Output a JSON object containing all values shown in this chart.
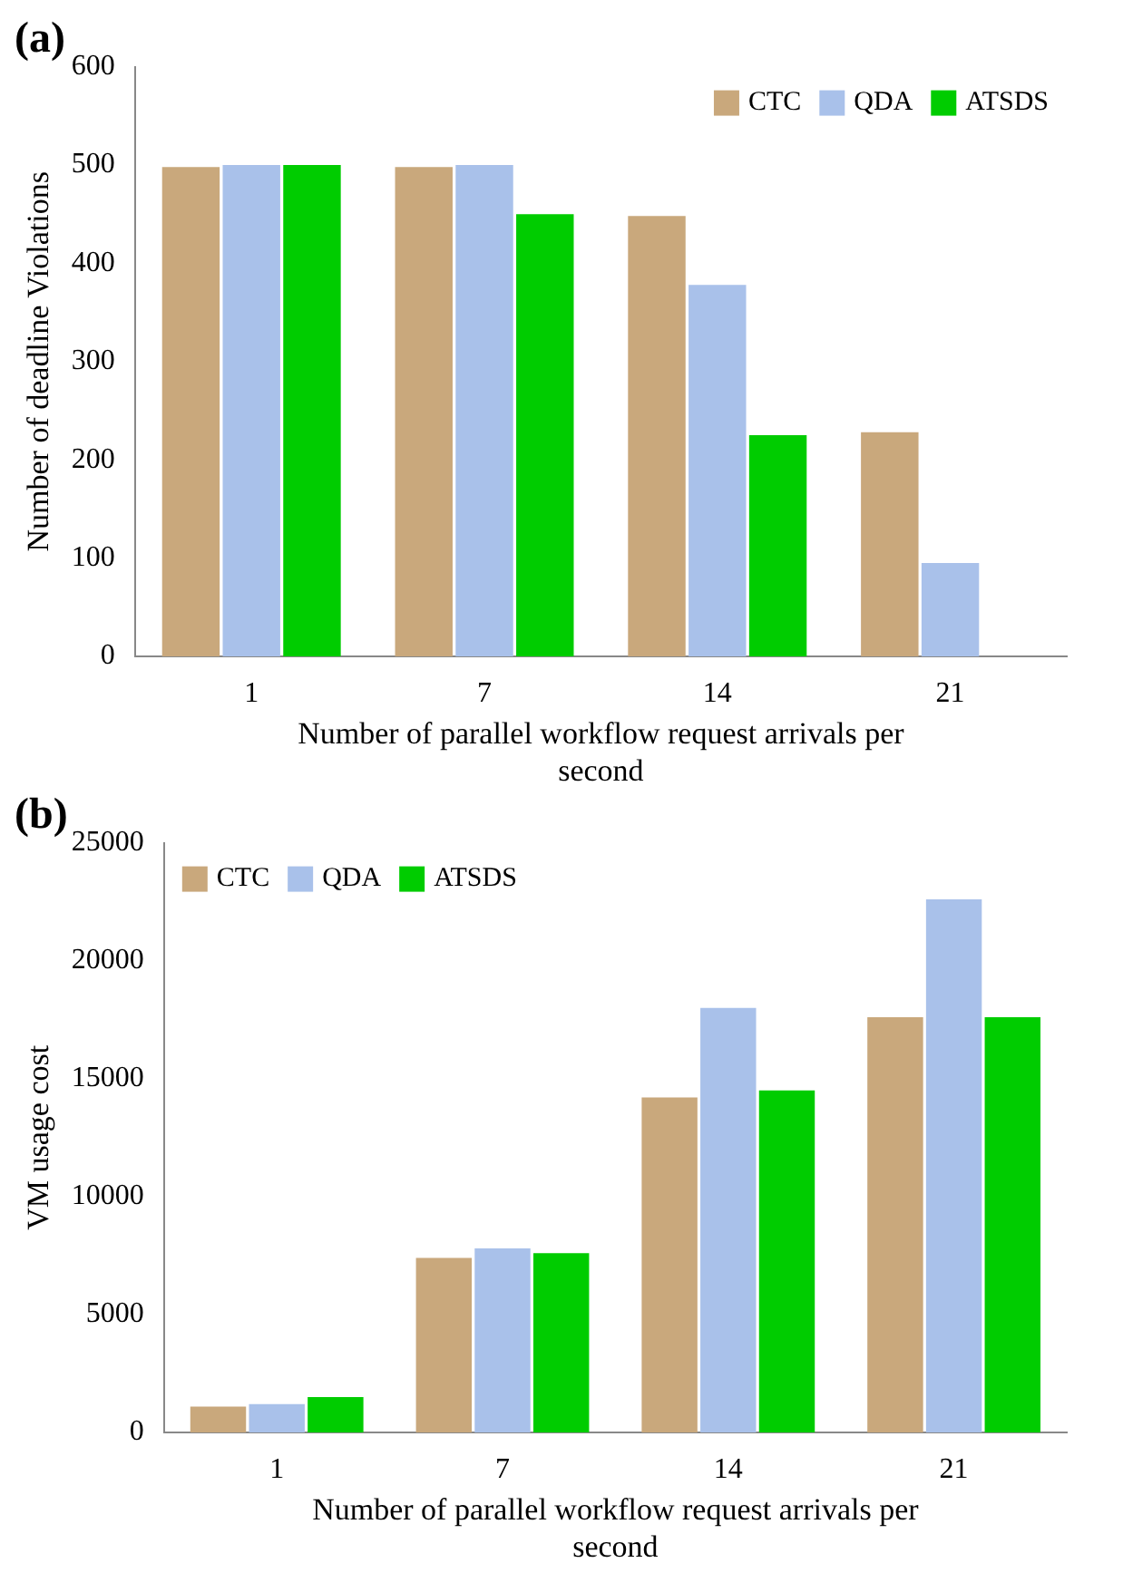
{
  "chart_data": [
    {
      "type": "bar",
      "title": "(a)",
      "xlabel": "Number of parallel workflow request arrivals per second",
      "ylabel": "Number of deadline Violations",
      "categories": [
        "1",
        "7",
        "14",
        "21"
      ],
      "series": [
        {
          "name": "CTC",
          "color": "#c9a87c",
          "values": [
            498,
            498,
            448,
            228
          ]
        },
        {
          "name": "QDA",
          "color": "#a9c1ea",
          "values": [
            500,
            500,
            378,
            95
          ]
        },
        {
          "name": "ATSDS",
          "color": "#00cc00",
          "values": [
            500,
            450,
            225,
            0
          ]
        }
      ],
      "ylim": [
        0,
        600
      ],
      "yticks": [
        0,
        100,
        200,
        300,
        400,
        500,
        600
      ],
      "grid": false,
      "legend": "top right"
    },
    {
      "type": "bar",
      "title": "(b)",
      "xlabel": "Number of parallel workflow request arrivals per second",
      "ylabel": "VM usage cost",
      "categories": [
        "1",
        "7",
        "14",
        "21"
      ],
      "series": [
        {
          "name": "CTC",
          "color": "#c9a87c",
          "values": [
            1100,
            7400,
            14200,
            17600
          ]
        },
        {
          "name": "QDA",
          "color": "#a9c1ea",
          "values": [
            1200,
            7800,
            18000,
            22600
          ]
        },
        {
          "name": "ATSDS",
          "color": "#00cc00",
          "values": [
            1500,
            7600,
            14500,
            17600
          ]
        }
      ],
      "ylim": [
        0,
        25000
      ],
      "yticks": [
        0,
        5000,
        10000,
        15000,
        20000,
        25000
      ],
      "grid": false,
      "legend": "top left"
    }
  ]
}
